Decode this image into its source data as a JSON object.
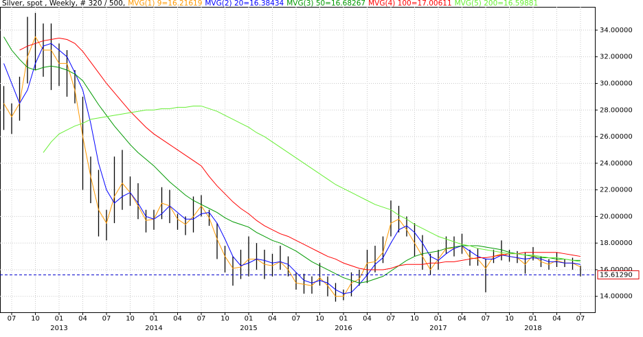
{
  "chart_data": {
    "type": "ohlc",
    "title": "Silver, spot , Weekly, # 320 / 500,",
    "x": [
      "2012-06",
      "2012-07",
      "2012-08",
      "2012-09",
      "2012-10",
      "2012-11",
      "2012-12",
      "2013-01",
      "2013-02",
      "2013-03",
      "2013-04",
      "2013-05",
      "2013-06",
      "2013-07",
      "2013-08",
      "2013-09",
      "2013-10",
      "2013-11",
      "2013-12",
      "2014-01",
      "2014-02",
      "2014-03",
      "2014-04",
      "2014-05",
      "2014-06",
      "2014-07",
      "2014-08",
      "2014-09",
      "2014-10",
      "2014-11",
      "2014-12",
      "2015-01",
      "2015-02",
      "2015-03",
      "2015-04",
      "2015-05",
      "2015-06",
      "2015-07",
      "2015-08",
      "2015-09",
      "2015-10",
      "2015-11",
      "2015-12",
      "2016-01",
      "2016-02",
      "2016-03",
      "2016-04",
      "2016-05",
      "2016-06",
      "2016-07",
      "2016-08",
      "2016-09",
      "2016-10",
      "2016-11",
      "2016-12",
      "2017-01",
      "2017-02",
      "2017-03",
      "2017-04",
      "2017-05",
      "2017-06",
      "2017-07",
      "2017-08",
      "2017-09",
      "2017-10",
      "2017-11",
      "2017-12",
      "2018-01",
      "2018-02",
      "2018-03",
      "2018-04",
      "2018-05",
      "2018-06",
      "2018-07"
    ],
    "high": [
      29.8,
      28.5,
      30.5,
      35.0,
      35.3,
      34.5,
      34.5,
      33.0,
      32.5,
      31.0,
      29.0,
      24.5,
      23.5,
      20.5,
      24.5,
      25.0,
      23.0,
      22.5,
      20.5,
      20.5,
      22.2,
      22.0,
      20.2,
      20.0,
      21.5,
      21.6,
      20.5,
      19.5,
      17.8,
      17.0,
      17.5,
      18.5,
      18.0,
      17.5,
      17.2,
      17.8,
      17.0,
      15.8,
      15.7,
      15.5,
      16.5,
      15.5,
      15.0,
      14.5,
      15.8,
      16.0,
      17.5,
      17.8,
      18.5,
      21.2,
      20.8,
      20.0,
      19.5,
      18.6,
      17.2,
      17.5,
      18.5,
      18.5,
      18.7,
      17.5,
      17.6,
      16.8,
      17.5,
      18.2,
      17.5,
      17.4,
      17.3,
      17.7,
      17.0,
      16.8,
      17.3,
      16.8,
      16.9,
      16.3
    ],
    "low": [
      26.5,
      26.2,
      27.2,
      30.0,
      31.0,
      30.5,
      29.5,
      29.8,
      29.0,
      28.5,
      22.0,
      21.0,
      18.5,
      18.2,
      19.5,
      20.5,
      20.8,
      19.8,
      18.8,
      19.0,
      19.8,
      19.5,
      19.0,
      18.6,
      18.8,
      20.0,
      19.3,
      16.8,
      15.8,
      14.8,
      15.3,
      15.5,
      16.0,
      15.3,
      15.5,
      16.0,
      15.5,
      14.5,
      14.2,
      14.2,
      14.8,
      14.0,
      13.6,
      13.7,
      14.0,
      14.8,
      15.0,
      15.8,
      16.5,
      18.5,
      18.8,
      18.5,
      17.0,
      16.0,
      15.6,
      16.0,
      17.2,
      17.0,
      17.2,
      16.3,
      16.3,
      14.3,
      16.5,
      16.7,
      16.6,
      16.5,
      15.7,
      16.7,
      16.2,
      16.0,
      16.2,
      16.2,
      16.0,
      15.5
    ],
    "bar_color": "#000000",
    "series": [
      {
        "name": "MVG(1) 9=16.21619",
        "color": "#ff9900",
        "values": [
          28.5,
          27.5,
          28.5,
          32.0,
          33.5,
          32.5,
          32.5,
          31.5,
          31.5,
          29.5,
          26.0,
          23.0,
          20.5,
          19.5,
          21.5,
          22.5,
          21.8,
          20.8,
          19.7,
          19.8,
          21.0,
          20.8,
          19.8,
          19.4,
          20.0,
          20.8,
          19.9,
          18.3,
          17.0,
          16.1,
          16.2,
          16.8,
          16.8,
          16.4,
          16.3,
          16.6,
          16.0,
          15.0,
          14.9,
          14.8,
          15.4,
          14.8,
          14.0,
          14.0,
          15.0,
          15.3,
          16.5,
          16.6,
          17.3,
          19.5,
          19.8,
          19.0,
          18.0,
          17.0,
          16.0,
          16.8,
          17.6,
          17.6,
          17.8,
          16.9,
          16.8,
          16.1,
          17.0,
          17.2,
          17.0,
          16.9,
          16.4,
          17.1,
          16.6,
          16.4,
          16.7,
          16.5,
          16.5,
          16.2
        ]
      },
      {
        "name": "MVG(2) 20=16.38434",
        "color": "#0000ff",
        "values": [
          31.5,
          30.0,
          28.5,
          29.5,
          31.5,
          32.8,
          33.0,
          32.5,
          32.0,
          30.8,
          29.5,
          27.0,
          24.0,
          22.0,
          21.0,
          21.5,
          21.8,
          21.0,
          20.0,
          19.8,
          20.2,
          20.8,
          20.3,
          19.8,
          19.8,
          20.2,
          20.3,
          19.5,
          18.3,
          17.0,
          16.3,
          16.5,
          16.8,
          16.7,
          16.5,
          16.6,
          16.4,
          15.8,
          15.2,
          15.0,
          15.2,
          15.0,
          14.5,
          14.2,
          14.3,
          14.9,
          15.6,
          16.4,
          16.9,
          18.0,
          19.0,
          19.3,
          18.8,
          18.0,
          17.0,
          16.7,
          17.2,
          17.6,
          17.8,
          17.4,
          17.0,
          16.8,
          16.8,
          17.1,
          17.0,
          16.9,
          16.8,
          16.9,
          16.8,
          16.6,
          16.6,
          16.5,
          16.5,
          16.4
        ]
      },
      {
        "name": "MVG(3) 50=16.68267",
        "color": "#009900",
        "values": [
          33.5,
          32.5,
          31.8,
          31.2,
          31.0,
          31.2,
          31.3,
          31.2,
          31.0,
          30.7,
          30.2,
          29.3,
          28.4,
          27.6,
          26.8,
          26.1,
          25.4,
          24.8,
          24.3,
          23.8,
          23.2,
          22.6,
          22.1,
          21.6,
          21.2,
          20.9,
          20.6,
          20.3,
          19.9,
          19.6,
          19.4,
          19.2,
          18.8,
          18.5,
          18.2,
          18.0,
          17.7,
          17.4,
          17.0,
          16.6,
          16.3,
          16.0,
          15.7,
          15.4,
          15.2,
          15.0,
          15.1,
          15.3,
          15.5,
          15.9,
          16.3,
          16.7,
          17.0,
          17.2,
          17.3,
          17.4,
          17.6,
          17.7,
          17.8,
          17.8,
          17.8,
          17.7,
          17.6,
          17.5,
          17.3,
          17.2,
          17.1,
          17.0,
          16.9,
          16.9,
          16.8,
          16.8,
          16.7,
          16.7
        ]
      },
      {
        "name": "MVG(4) 100=17.00611",
        "color": "#ff0000",
        "values": [
          null,
          null,
          32.5,
          32.8,
          33.0,
          33.2,
          33.3,
          33.4,
          33.3,
          33.0,
          32.4,
          31.6,
          30.8,
          30.0,
          29.3,
          28.6,
          27.9,
          27.3,
          26.7,
          26.2,
          25.8,
          25.4,
          25.0,
          24.6,
          24.2,
          23.8,
          23.0,
          22.3,
          21.7,
          21.1,
          20.6,
          20.2,
          19.7,
          19.3,
          19.0,
          18.7,
          18.5,
          18.2,
          17.9,
          17.6,
          17.3,
          17.0,
          16.8,
          16.5,
          16.3,
          16.1,
          16.0,
          16.0,
          16.0,
          16.1,
          16.3,
          16.4,
          16.4,
          16.4,
          16.5,
          16.5,
          16.6,
          16.6,
          16.7,
          16.8,
          16.9,
          16.9,
          17.0,
          17.1,
          17.2,
          17.2,
          17.3,
          17.3,
          17.3,
          17.3,
          17.3,
          17.2,
          17.1,
          17.0
        ]
      },
      {
        "name": "MVG(5) 200=16.59881",
        "color": "#66ee33",
        "values": [
          null,
          null,
          null,
          null,
          null,
          24.8,
          25.6,
          26.2,
          26.5,
          26.8,
          27.0,
          27.3,
          27.4,
          27.5,
          27.6,
          27.7,
          27.8,
          27.9,
          28.0,
          28.0,
          28.1,
          28.1,
          28.2,
          28.2,
          28.3,
          28.3,
          28.1,
          27.9,
          27.6,
          27.3,
          27.0,
          26.7,
          26.3,
          26.0,
          25.6,
          25.2,
          24.8,
          24.4,
          24.0,
          23.6,
          23.2,
          22.8,
          22.4,
          22.1,
          21.8,
          21.5,
          21.2,
          20.9,
          20.7,
          20.5,
          20.1,
          19.8,
          19.4,
          19.1,
          18.8,
          18.5,
          18.3,
          18.1,
          17.9,
          17.8,
          17.6,
          17.5,
          17.4,
          17.3,
          17.2,
          17.2,
          17.1,
          17.1,
          17.0,
          16.9,
          16.9,
          16.8,
          16.7,
          16.6
        ]
      }
    ],
    "ylim": [
      12.8,
      35.75
    ],
    "yticks": [
      {
        "value": 14,
        "label": "14.00000"
      },
      {
        "value": 16,
        "label": "16.00000"
      },
      {
        "value": 18,
        "label": "18.00000"
      },
      {
        "value": 20,
        "label": "20.00000"
      },
      {
        "value": 22,
        "label": "22.00000"
      },
      {
        "value": 24,
        "label": "24.00000"
      },
      {
        "value": 26,
        "label": "26.00000"
      },
      {
        "value": 28,
        "label": "28.00000"
      },
      {
        "value": 30,
        "label": "30.00000"
      },
      {
        "value": 32,
        "label": "32.00000"
      },
      {
        "value": 34,
        "label": "34.00000"
      }
    ],
    "xticks": [
      {
        "value": "2012-07",
        "label": "07"
      },
      {
        "value": "2012-10",
        "label": "10"
      },
      {
        "value": "2013-01",
        "label": "01"
      },
      {
        "value": "2013-04",
        "label": "04"
      },
      {
        "value": "2013-07",
        "label": "07"
      },
      {
        "value": "2013-10",
        "label": "10"
      },
      {
        "value": "2014-01",
        "label": "01"
      },
      {
        "value": "2014-04",
        "label": "04"
      },
      {
        "value": "2014-07",
        "label": "07"
      },
      {
        "value": "2014-10",
        "label": "10"
      },
      {
        "value": "2015-01",
        "label": "01"
      },
      {
        "value": "2015-04",
        "label": "04"
      },
      {
        "value": "2015-07",
        "label": "07"
      },
      {
        "value": "2015-10",
        "label": "10"
      },
      {
        "value": "2016-01",
        "label": "01"
      },
      {
        "value": "2016-04",
        "label": "04"
      },
      {
        "value": "2016-07",
        "label": "07"
      },
      {
        "value": "2016-10",
        "label": "10"
      },
      {
        "value": "2017-01",
        "label": "01"
      },
      {
        "value": "2017-04",
        "label": "04"
      },
      {
        "value": "2017-07",
        "label": "07"
      },
      {
        "value": "2017-10",
        "label": "10"
      },
      {
        "value": "2018-01",
        "label": "01"
      },
      {
        "value": "2018-04",
        "label": "04"
      },
      {
        "value": "2018-07",
        "label": "07"
      }
    ],
    "year_labels": [
      {
        "value": "2013-01",
        "label": "2013"
      },
      {
        "value": "2014-01",
        "label": "2014"
      },
      {
        "value": "2015-01",
        "label": "2015"
      },
      {
        "value": "2016-01",
        "label": "2016"
      },
      {
        "value": "2017-01",
        "label": "2017"
      },
      {
        "value": "2018-01",
        "label": "2018"
      }
    ],
    "last": {
      "value": 15.6129,
      "label": "15.61290",
      "color": "#0000cc"
    },
    "grid": true
  }
}
